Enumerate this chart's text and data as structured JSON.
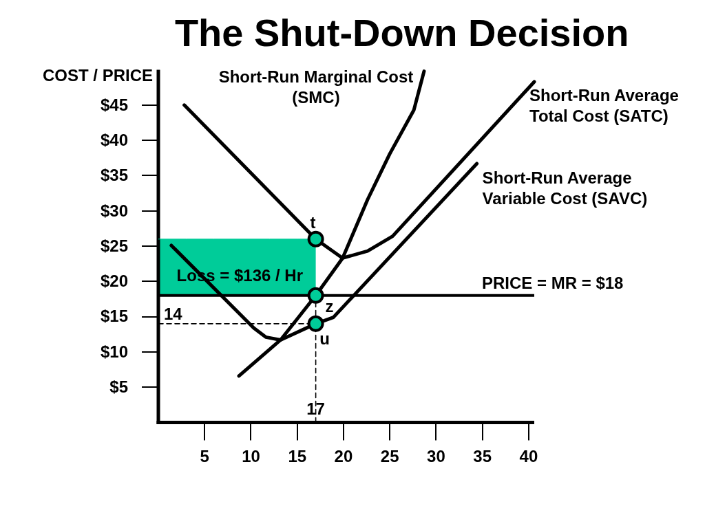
{
  "chart_data": {
    "type": "line",
    "title": "The Shut-Down Decision",
    "ylabel": "COST / PRICE",
    "xlim": [
      0,
      40.6
    ],
    "xticks": [
      5,
      10,
      15,
      20,
      25,
      30,
      35,
      40
    ],
    "ylim": [
      0,
      50
    ],
    "yticks": [
      {
        "value": 5,
        "label": "$5"
      },
      {
        "value": 10,
        "label": "$10"
      },
      {
        "value": 15,
        "label": "$15"
      },
      {
        "value": 20,
        "label": "$20"
      },
      {
        "value": 25,
        "label": "$25"
      },
      {
        "value": 30,
        "label": "$30"
      },
      {
        "value": 35,
        "label": "$35"
      },
      {
        "value": 40,
        "label": "$40"
      },
      {
        "value": 45,
        "label": "$45"
      }
    ],
    "grid": false,
    "legend": false,
    "series": [
      {
        "color": "#00cc99",
        "x": [
          0,
          3,
          6,
          9,
          12,
          15,
          17
        ],
        "values": [
          26,
          26,
          26,
          26,
          26,
          26,
          26
        ],
        "lower": [
          18,
          18,
          18,
          18,
          18,
          18,
          18
        ],
        "upper": [
          26,
          26,
          26,
          26,
          26,
          26,
          26
        ]
      },
      {
        "name": "Short-Run Marginal Cost (SMC)",
        "color": "#000000",
        "x": [
          8.7,
          13.2,
          17,
          19.9,
          22.6,
          25,
          27.6,
          28.7
        ],
        "values": [
          6.6,
          11.7,
          18,
          23.3,
          31.6,
          38.1,
          44.3,
          49.8
        ]
      },
      {
        "name": "Short-Run Average Total Cost (SATC)",
        "color": "#000000",
        "x": [
          2.8,
          17,
          19.9,
          22.6,
          25.3,
          40.6
        ],
        "values": [
          45,
          26,
          23.3,
          24.3,
          26.4,
          48.3
        ]
      },
      {
        "name": "Short-Run Average Variable Cost (SAVC)",
        "color": "#000000",
        "x": [
          1.4,
          10.3,
          11.6,
          13.2,
          17,
          18.9,
          34.4
        ],
        "values": [
          25.1,
          13.4,
          12.1,
          11.7,
          14,
          14.9,
          36.7
        ]
      },
      {
        "color": "#000000",
        "line_style": "dashed",
        "x": [
          0,
          17
        ],
        "values": [
          14,
          14
        ],
        "value_labels": [
          "14",
          null
        ]
      },
      {
        "color": "#000000",
        "line_style": "dashed",
        "x": [
          17,
          17
        ],
        "values": [
          0,
          18
        ]
      },
      {
        "type": "scatter",
        "color": "#00cc99",
        "marker": "circle",
        "x": [
          17,
          17,
          17
        ],
        "values": [
          26,
          18,
          14
        ],
        "value_labels": [
          "t",
          "z",
          "u"
        ]
      }
    ],
    "ref_lines": [
      {
        "axis": "y",
        "value": 18,
        "label": "PRICE = MR = $18",
        "color": "#000000"
      }
    ],
    "annotations": [
      "Loss = $136 / Hr",
      {
        "text": "17",
        "x": 17,
        "y": 0
      }
    ]
  }
}
